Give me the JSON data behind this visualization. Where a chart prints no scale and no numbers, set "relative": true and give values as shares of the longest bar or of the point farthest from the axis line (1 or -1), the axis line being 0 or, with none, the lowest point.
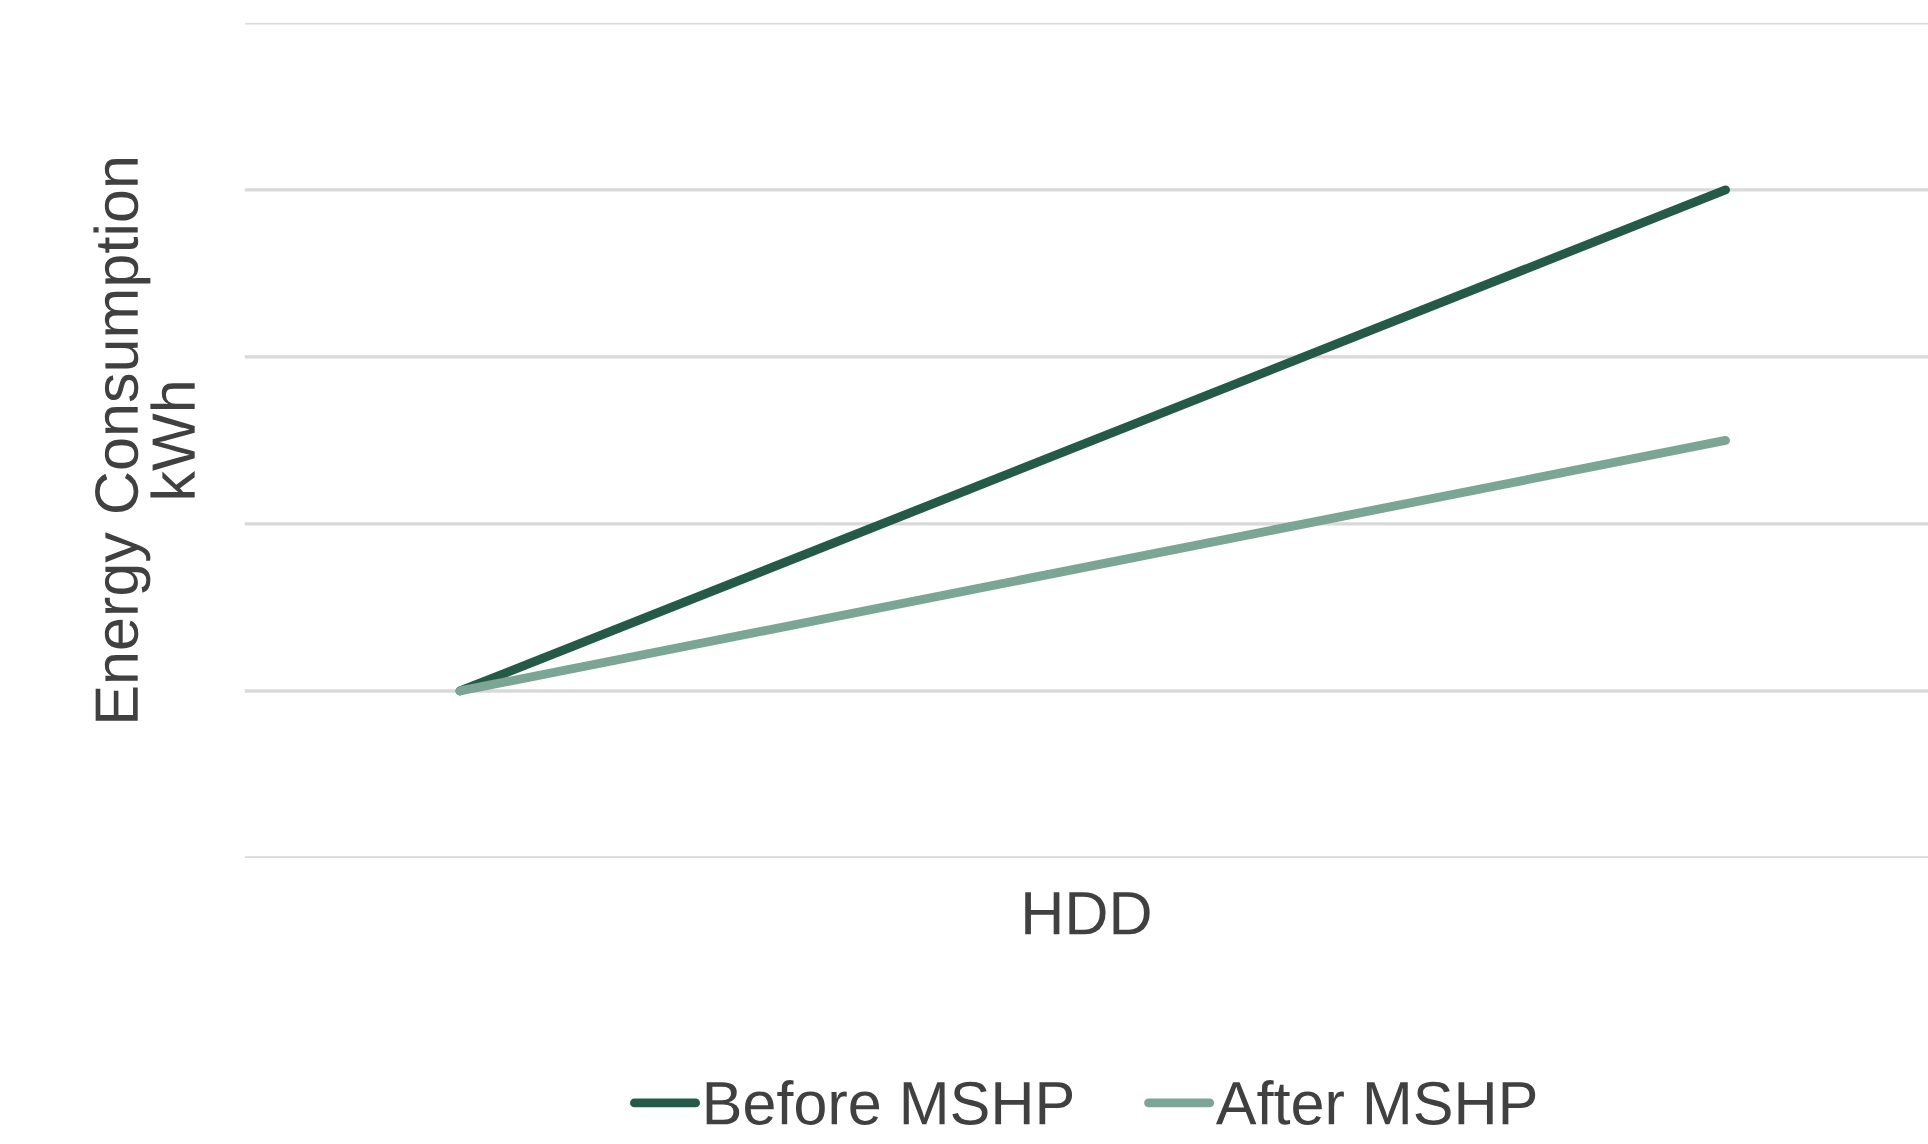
{
  "chart_data": {
    "type": "line",
    "relative": true,
    "xlabel": "HDD",
    "ylabel": "Energy Consumption\nkWh",
    "categories": [
      null,
      null
    ],
    "series": [
      {
        "name": "Before MSHP",
        "color": "#255a48",
        "values": [
          0.25,
          1
        ]
      },
      {
        "name": "After MSHP",
        "color": "#7ba595",
        "values": [
          0.25,
          0.625
        ]
      }
    ],
    "grid": "y",
    "legend": "bottom",
    "marker": "none",
    "line_style": "solid"
  }
}
